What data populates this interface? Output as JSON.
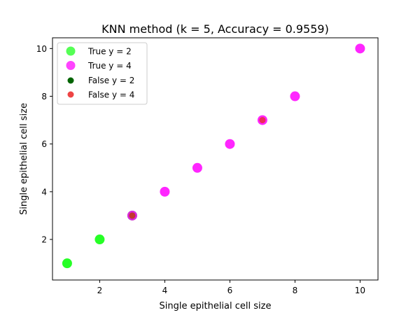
{
  "chart_data": {
    "type": "scatter",
    "title": "KNN method (k = 5, Accuracy = 0.9559)",
    "xlabel": "Single epithelial cell size",
    "ylabel": "Single epithelial cell size",
    "xlim": [
      0.55,
      10.55
    ],
    "ylim": [
      0.3,
      10.45
    ],
    "xticks": [
      2,
      4,
      6,
      8,
      10
    ],
    "yticks": [
      2,
      4,
      6,
      8,
      10
    ],
    "grid": false,
    "legend_position": "top-left",
    "series": [
      {
        "name": "True y = 2",
        "color": "#00ff00",
        "legend_color": "#55ff55",
        "marker_size": "large",
        "points": [
          [
            1,
            1
          ],
          [
            2,
            2
          ],
          [
            3,
            3
          ]
        ]
      },
      {
        "name": "True y = 4",
        "color": "#ff00ff",
        "legend_color": "#ff44ff",
        "marker_size": "large",
        "points": [
          [
            3,
            3
          ],
          [
            4,
            4
          ],
          [
            5,
            5
          ],
          [
            6,
            6
          ],
          [
            7,
            7
          ],
          [
            8,
            8
          ],
          [
            10,
            10
          ]
        ]
      },
      {
        "name": "False y = 2",
        "color": "#006400",
        "legend_color": "#006400",
        "marker_size": "small",
        "points": [
          [
            3,
            3
          ]
        ]
      },
      {
        "name": "False y = 4",
        "color": "#e83030",
        "legend_color": "#ee4444",
        "marker_size": "small",
        "points": [
          [
            3,
            3
          ],
          [
            7,
            7
          ]
        ]
      }
    ]
  }
}
